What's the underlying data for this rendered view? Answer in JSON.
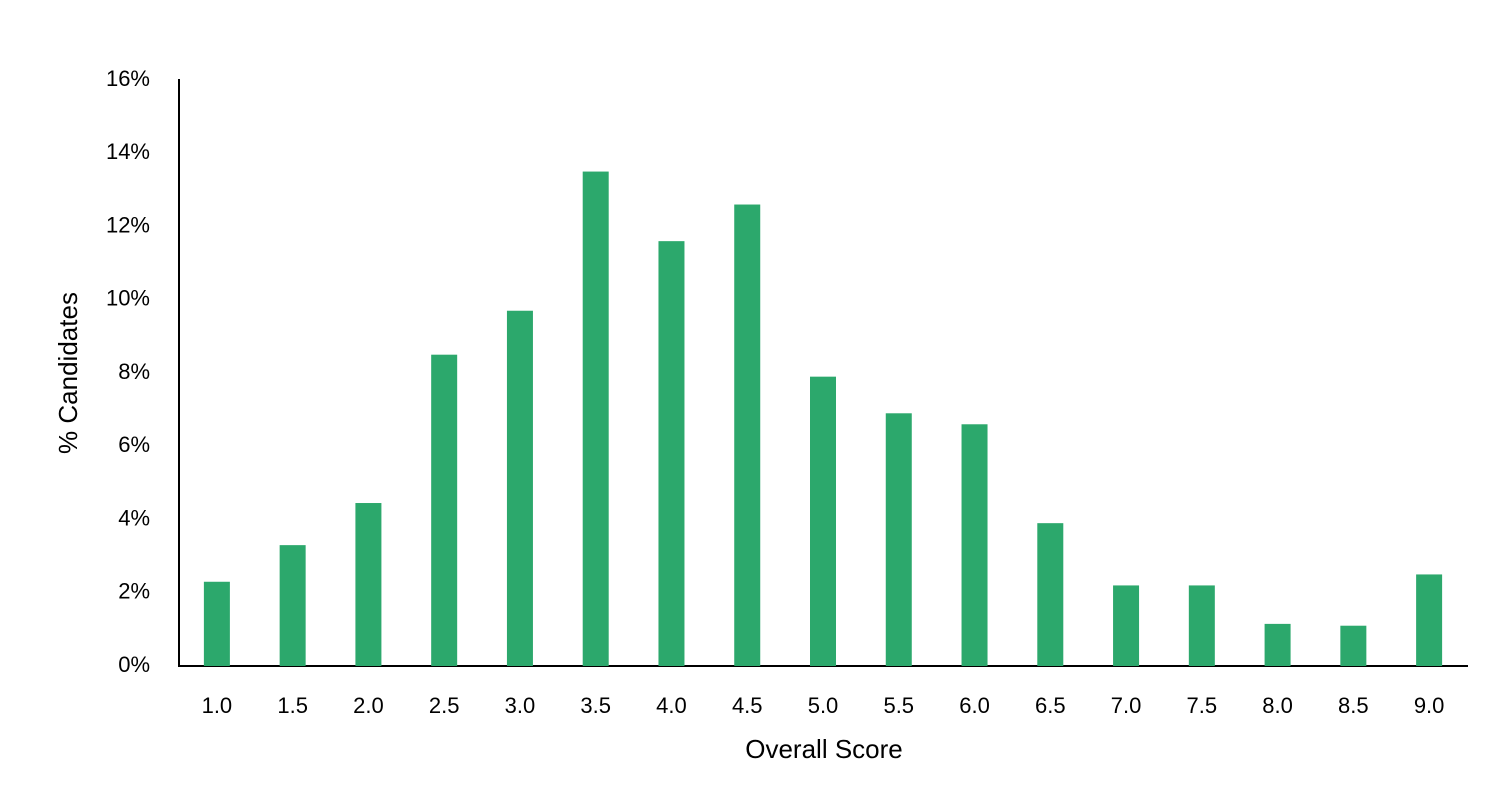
{
  "chart_data": {
    "type": "bar",
    "x_label": "Overall Score",
    "y_label": "% Candidates",
    "categories": [
      "1.0",
      "1.5",
      "2.0",
      "2.5",
      "3.0",
      "3.5",
      "4.0",
      "4.5",
      "5.0",
      "5.5",
      "6.0",
      "6.5",
      "7.0",
      "7.5",
      "8.0",
      "8.5",
      "9.0"
    ],
    "values": [
      2.3,
      3.3,
      4.45,
      8.5,
      9.7,
      13.5,
      11.6,
      12.6,
      7.9,
      6.9,
      6.6,
      3.9,
      2.2,
      2.2,
      1.15,
      1.1,
      2.5
    ],
    "color": "#2ca86c",
    "ylim": [
      0,
      16
    ],
    "yticks": [
      {
        "value": 0,
        "label": "0%"
      },
      {
        "value": 2,
        "label": "2%"
      },
      {
        "value": 4,
        "label": "4%"
      },
      {
        "value": 6,
        "label": "6%"
      },
      {
        "value": 8,
        "label": "8%"
      },
      {
        "value": 10,
        "label": "10%"
      },
      {
        "value": 12,
        "label": "12%"
      },
      {
        "value": 14,
        "label": "14%"
      },
      {
        "value": 16,
        "label": "16%"
      }
    ],
    "grid": false
  }
}
